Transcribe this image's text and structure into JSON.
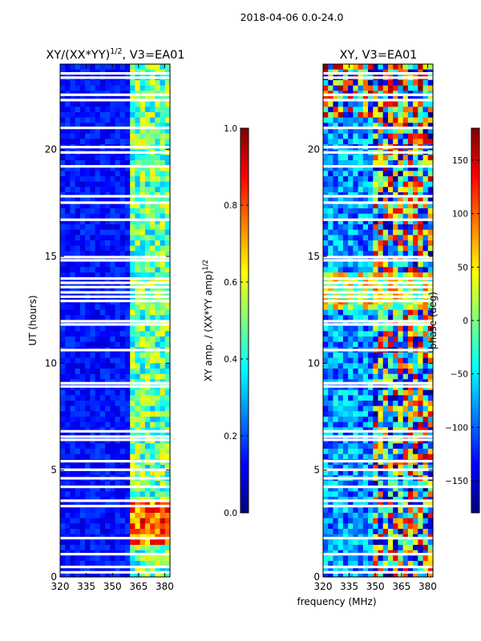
{
  "figure": {
    "suptitle": "2018-04-06 0.0-24.0",
    "shared_xlabel": "frequency (MHz)"
  },
  "colors": {
    "bg": "#00007f",
    "jet": [
      "#00007f",
      "#0000ff",
      "#007fff",
      "#00ffff",
      "#7fff7f",
      "#ffff00",
      "#ff7f00",
      "#ff0000",
      "#7f0000"
    ]
  },
  "chart_data": [
    {
      "type": "heatmap",
      "title": "XY/(XX*YY)^1/2, V3=EA01",
      "title_main": "XY/(XX*YY)",
      "title_sup": "1/2",
      "title_tail": ", V3=EA01",
      "xlabel": "",
      "ylabel": "UT (hours)",
      "xlim": [
        320,
        383
      ],
      "ylim": [
        0,
        24
      ],
      "xticks": [
        320,
        335,
        350,
        365,
        380
      ],
      "yticks": [
        0,
        5,
        10,
        15,
        20
      ],
      "colorbar": {
        "label_main": "XY amp. / (XX*YY amp)",
        "label_sup": "1/2",
        "range": [
          0.0,
          1.0
        ],
        "ticks": [
          0.0,
          0.2,
          0.4,
          0.6,
          0.8,
          1.0
        ],
        "tick_labels": [
          "0.0",
          "0.2",
          "0.4",
          "0.6",
          "0.8",
          "1.0"
        ]
      },
      "features": [
        {
          "x_range": [
            320,
            360
          ],
          "value": 0.12,
          "note": "low amplitude background"
        },
        {
          "x_range": [
            360,
            383
          ],
          "value": 0.45,
          "note": "moderate amplitude band"
        },
        {
          "x_range": [
            360,
            383
          ],
          "y_range": [
            1.5,
            3.5
          ],
          "value": 0.8,
          "note": "high amplitude patch"
        }
      ],
      "gaps_hours": [
        0.2,
        0.45,
        1.05,
        1.8,
        3.3,
        3.55,
        4.2,
        4.6,
        5.0,
        5.4,
        6.4,
        6.55,
        6.8,
        8.9,
        9.05,
        10.6,
        11.8,
        11.95,
        12.9,
        13.1,
        13.3,
        13.55,
        13.75,
        13.95,
        14.8,
        14.95,
        16.7,
        17.5,
        17.8,
        19.2,
        19.85,
        20.1,
        21.0,
        22.3,
        22.55,
        23.35,
        23.55
      ]
    },
    {
      "type": "heatmap",
      "title": "XY, V3=EA01",
      "xlabel": "",
      "ylabel": "",
      "xlim": [
        320,
        383
      ],
      "ylim": [
        0,
        24
      ],
      "xticks": [
        320,
        335,
        350,
        365,
        380
      ],
      "yticks": [
        0,
        5,
        10,
        15,
        20
      ],
      "colorbar": {
        "label": "phase (deg)",
        "range": [
          -180,
          180
        ],
        "ticks": [
          -150,
          -100,
          -50,
          0,
          50,
          100,
          150
        ],
        "tick_labels": [
          "−150",
          "−100",
          "−50",
          "0",
          "50",
          "100",
          "150"
        ]
      },
      "features": [
        {
          "note": "noisy phase, mostly negative (blue) at low frequency, mixed near 360-383 MHz"
        }
      ],
      "gaps_hours": [
        0.2,
        0.45,
        1.05,
        1.8,
        3.3,
        3.55,
        4.2,
        4.6,
        5.0,
        5.4,
        6.4,
        6.55,
        6.8,
        8.9,
        9.05,
        10.6,
        11.8,
        11.95,
        12.9,
        13.1,
        13.3,
        13.55,
        13.75,
        13.95,
        14.8,
        14.95,
        16.7,
        17.5,
        17.8,
        19.2,
        19.85,
        20.1,
        21.0,
        22.3,
        22.55,
        23.35,
        23.55
      ]
    }
  ]
}
